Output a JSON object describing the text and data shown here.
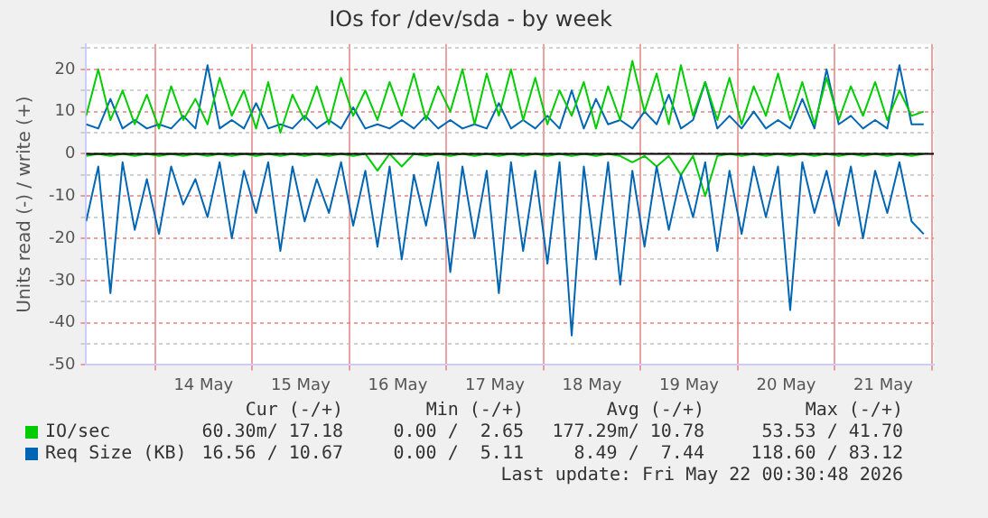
{
  "chart_data": {
    "type": "line",
    "title": "IOs for /dev/sda - by week",
    "ylabel": "Units read (-) / write (+)",
    "x": [
      "2026-05-13T07:00",
      "2026-05-13T10:00",
      "2026-05-13T13:00",
      "2026-05-13T16:00",
      "2026-05-13T19:00",
      "2026-05-13T22:00",
      "2026-05-14T01:00",
      "2026-05-14T04:00",
      "2026-05-14T07:00",
      "2026-05-14T10:00",
      "2026-05-14T13:00",
      "2026-05-14T16:00",
      "2026-05-14T19:00",
      "2026-05-14T22:00",
      "2026-05-15T01:00",
      "2026-05-15T04:00",
      "2026-05-15T07:00",
      "2026-05-15T10:00",
      "2026-05-15T13:00",
      "2026-05-15T16:00",
      "2026-05-15T19:00",
      "2026-05-15T22:00",
      "2026-05-16T01:00",
      "2026-05-16T04:00",
      "2026-05-16T07:00",
      "2026-05-16T10:00",
      "2026-05-16T13:00",
      "2026-05-16T16:00",
      "2026-05-16T19:00",
      "2026-05-16T22:00",
      "2026-05-17T01:00",
      "2026-05-17T04:00",
      "2026-05-17T07:00",
      "2026-05-17T10:00",
      "2026-05-17T13:00",
      "2026-05-17T16:00",
      "2026-05-17T19:00",
      "2026-05-17T22:00",
      "2026-05-18T01:00",
      "2026-05-18T04:00",
      "2026-05-18T07:00",
      "2026-05-18T10:00",
      "2026-05-18T13:00",
      "2026-05-18T16:00",
      "2026-05-18T19:00",
      "2026-05-18T22:00",
      "2026-05-19T01:00",
      "2026-05-19T04:00",
      "2026-05-19T07:00",
      "2026-05-19T10:00",
      "2026-05-19T13:00",
      "2026-05-19T16:00",
      "2026-05-19T19:00",
      "2026-05-19T22:00",
      "2026-05-20T01:00",
      "2026-05-20T04:00",
      "2026-05-20T07:00",
      "2026-05-20T10:00",
      "2026-05-20T13:00",
      "2026-05-20T16:00",
      "2026-05-20T19:00",
      "2026-05-20T22:00",
      "2026-05-21T01:00",
      "2026-05-21T04:00",
      "2026-05-21T07:00",
      "2026-05-21T10:00",
      "2026-05-21T13:00",
      "2026-05-21T16:00",
      "2026-05-21T19:00",
      "2026-05-21T22:00"
    ],
    "series": [
      {
        "name": "IO/sec",
        "color": "#00cc00",
        "values": [
          9,
          20,
          8,
          15,
          7,
          14,
          6,
          16,
          8,
          13,
          7,
          18,
          9,
          15,
          6,
          17,
          5,
          14,
          8,
          16,
          7,
          18,
          9,
          15,
          8,
          17,
          9,
          19,
          8,
          16,
          10,
          20,
          7,
          19,
          9,
          20,
          8,
          18,
          7,
          15,
          9,
          17,
          6,
          16,
          8,
          22,
          10,
          19,
          7,
          21,
          9,
          17,
          8,
          18,
          7,
          16,
          9,
          19,
          8,
          17,
          7,
          18,
          8,
          16,
          9,
          17,
          8,
          15,
          9,
          10
        ]
      },
      {
        "name": "Req Size (KB)",
        "color": "#0066b3",
        "values": [
          7,
          6,
          13,
          6,
          8,
          6,
          7,
          6,
          9,
          6,
          21,
          6,
          8,
          6,
          12,
          6,
          7,
          6,
          9,
          6,
          8,
          6,
          11,
          6,
          7,
          6,
          8,
          6,
          9,
          6,
          8,
          6,
          7,
          6,
          12,
          6,
          8,
          6,
          9,
          6,
          15,
          6,
          13,
          7,
          8,
          6,
          10,
          7,
          14,
          6,
          8,
          17,
          6,
          9,
          6,
          10,
          6,
          8,
          6,
          13,
          6,
          20,
          7,
          9,
          6,
          8,
          6,
          21,
          7,
          7
        ]
      },
      {
        "color": "#0066b3",
        "values": [
          -16,
          -3,
          -33,
          -2,
          -18,
          -6,
          -19,
          -3,
          -12,
          -6,
          -15,
          -2,
          -20,
          -4,
          -14,
          -2,
          -23,
          -3,
          -16,
          -6,
          -14,
          -2,
          -17,
          -4,
          -22,
          -3,
          -25,
          -5,
          -17,
          -2,
          -28,
          -3,
          -20,
          -4,
          -33,
          -2,
          -23,
          -4,
          -26,
          -2,
          -43,
          -3,
          -25,
          -2,
          -31,
          -4,
          -22,
          -3,
          -18,
          -5,
          -15,
          -2,
          -23,
          -4,
          -19,
          -3,
          -15,
          -3,
          -37,
          -2,
          -14,
          -4,
          -17,
          -3,
          -20,
          -4,
          -14,
          -2,
          -16,
          -19
        ]
      },
      {
        "color": "#00cc00",
        "values": [
          -0.5,
          0,
          -0.5,
          0,
          -0.5,
          0,
          -0.5,
          0,
          -0.5,
          0,
          -0.5,
          0,
          -0.5,
          0,
          -0.5,
          0,
          -0.5,
          0,
          -0.5,
          0,
          -0.5,
          0,
          -0.5,
          0,
          -4,
          0,
          -3,
          0,
          -0.5,
          0,
          -0.5,
          0,
          -0.5,
          0,
          -0.5,
          0,
          -0.5,
          0,
          -0.5,
          0,
          -0.5,
          0,
          -0.5,
          0,
          -0.5,
          -2,
          -0.5,
          -3,
          -0.5,
          -5,
          -0.5,
          -10,
          -0.5,
          0,
          -0.5,
          0,
          -0.5,
          0,
          -0.5,
          0,
          -0.5,
          0,
          -0.5,
          0,
          -0.5,
          0,
          -0.5,
          0,
          -0.5,
          0
        ]
      }
    ],
    "xlim": [
      "2026-05-13T07:00",
      "2026-05-22T00:30"
    ],
    "xticks": [
      {
        "value": "2026-05-14T00:00",
        "label": null
      },
      {
        "value": "2026-05-14T12:00",
        "label": "14 May"
      },
      {
        "value": "2026-05-15T00:00",
        "label": null
      },
      {
        "value": "2026-05-15T12:00",
        "label": "15 May"
      },
      {
        "value": "2026-05-16T00:00",
        "label": null
      },
      {
        "value": "2026-05-16T12:00",
        "label": "16 May"
      },
      {
        "value": "2026-05-17T00:00",
        "label": null
      },
      {
        "value": "2026-05-17T12:00",
        "label": "17 May"
      },
      {
        "value": "2026-05-18T00:00",
        "label": null
      },
      {
        "value": "2026-05-18T12:00",
        "label": "18 May"
      },
      {
        "value": "2026-05-19T00:00",
        "label": null
      },
      {
        "value": "2026-05-19T12:00",
        "label": "19 May"
      },
      {
        "value": "2026-05-20T00:00",
        "label": null
      },
      {
        "value": "2026-05-20T12:00",
        "label": "20 May"
      },
      {
        "value": "2026-05-21T00:00",
        "label": null
      },
      {
        "value": "2026-05-21T12:00",
        "label": "21 May"
      },
      {
        "value": "2026-05-22T00:00",
        "label": null
      }
    ],
    "ylim": [
      -50,
      26
    ],
    "yticks": [
      -50,
      {
        "value": -45,
        "label": null
      },
      -40,
      {
        "value": -35,
        "label": null
      },
      -30,
      {
        "value": -25,
        "label": null
      },
      -20,
      {
        "value": -15,
        "label": null
      },
      -10,
      {
        "value": -5,
        "label": null
      },
      0,
      {
        "value": 5,
        "label": null
      },
      10,
      {
        "value": 15,
        "label": null
      },
      20,
      {
        "value": 25,
        "label": null
      }
    ],
    "grid": true,
    "legend": "bottom",
    "marker": "none",
    "line_style": "solid",
    "ref_lines": [
      {
        "axis": "y",
        "value": 0,
        "color": "#000000"
      }
    ],
    "annotations": [
      "Cur (-/+)",
      "Min (-/+)",
      "Avg (-/+)",
      "Max (-/+)",
      "60.30m/ 17.18",
      "0.00 /  2.65",
      "177.29m/ 10.78",
      "53.53 / 41.70",
      "16.56 / 10.67",
      "0.00 /  5.11",
      "8.49 /  7.44",
      "118.60 / 83.12",
      "Last update: Fri May 22 00:30:48 2026"
    ]
  }
}
